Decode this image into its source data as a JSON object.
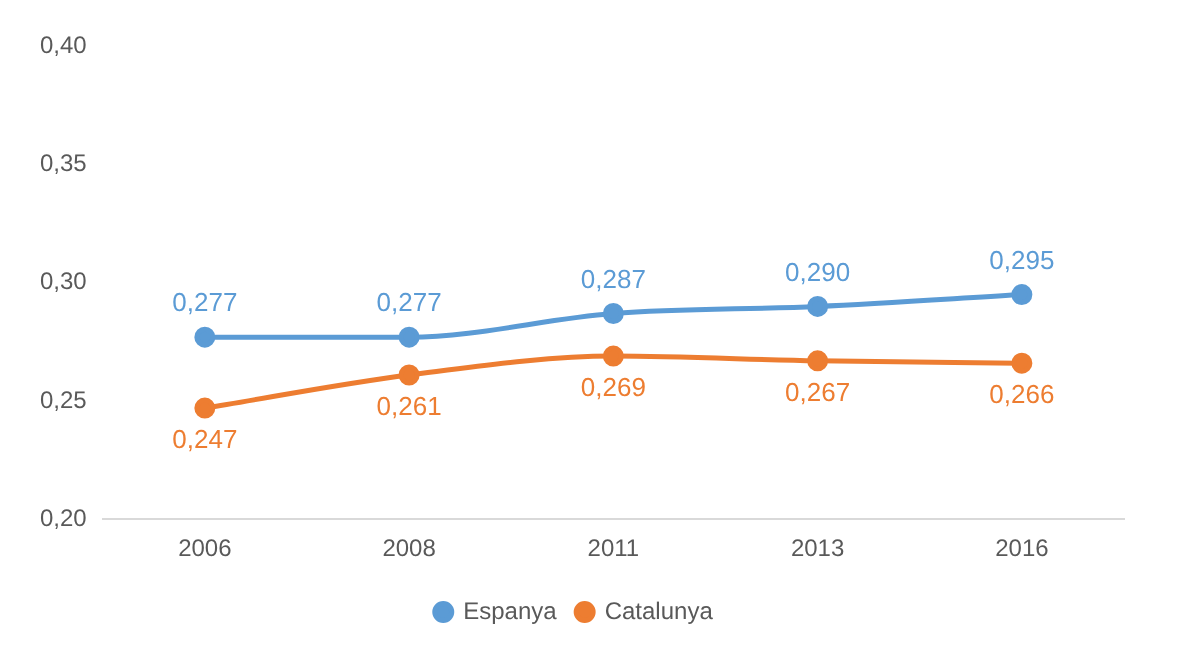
{
  "chart_data": {
    "type": "line",
    "categories": [
      "2006",
      "2008",
      "2011",
      "2013",
      "2016"
    ],
    "series": [
      {
        "name": "Espanya",
        "color": "#5b9bd5",
        "values": [
          0.277,
          0.277,
          0.287,
          0.29,
          0.295
        ],
        "value_labels": [
          "0,277",
          "0,277",
          "0,287",
          "0,290",
          "0,295"
        ]
      },
      {
        "name": "Catalunya",
        "color": "#ed7d31",
        "values": [
          0.247,
          0.261,
          0.269,
          0.267,
          0.266
        ],
        "value_labels": [
          "0,247",
          "0,261",
          "0,269",
          "0,267",
          "0,266"
        ]
      }
    ],
    "ylim": [
      0.2,
      0.4
    ],
    "yticks": [
      {
        "value": 0.2,
        "label": "0,20"
      },
      {
        "value": 0.25,
        "label": "0,25"
      },
      {
        "value": 0.3,
        "label": "0,30"
      },
      {
        "value": 0.35,
        "label": "0,35"
      },
      {
        "value": 0.4,
        "label": "0,40"
      }
    ],
    "grid": false,
    "legend": "bottom",
    "marker": "circle",
    "line_style": "solid"
  }
}
